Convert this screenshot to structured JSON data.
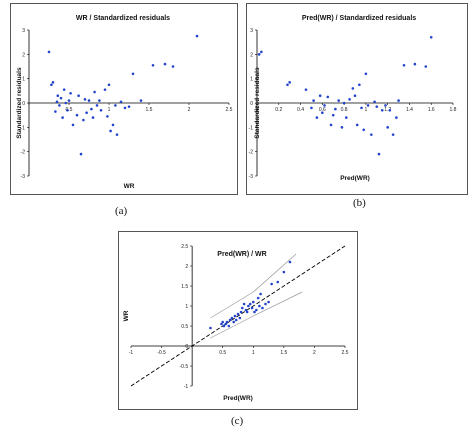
{
  "captions": [
    "(a)",
    "(b)",
    "(c)"
  ],
  "chart_data": [
    {
      "type": "scatter",
      "title": "WR / Standardized residuals",
      "xlabel": "WR",
      "ylabel": "Standardized residuals",
      "xlim": [
        0,
        2.5
      ],
      "ylim": [
        -3,
        3
      ],
      "xticks": [
        0,
        0.5,
        1,
        1.5,
        2,
        2.5
      ],
      "yticks": [
        -3,
        -2,
        -1,
        0,
        1,
        2,
        3
      ],
      "xtick_labels": [
        "0",
        "0.5",
        "1",
        "1.5",
        "2",
        "2.5"
      ],
      "ytick_labels": [
        "-3",
        "-2",
        "-1",
        "0",
        "1",
        "2",
        "3"
      ],
      "grid": false,
      "color": "#2244cc",
      "x": [
        0.25,
        0.28,
        0.3,
        0.33,
        0.35,
        0.36,
        0.38,
        0.4,
        0.42,
        0.44,
        0.46,
        0.48,
        0.5,
        0.52,
        0.55,
        0.6,
        0.62,
        0.65,
        0.68,
        0.7,
        0.72,
        0.75,
        0.78,
        0.8,
        0.82,
        0.85,
        0.88,
        0.9,
        0.95,
        0.98,
        1.0,
        1.02,
        1.05,
        1.08,
        1.1,
        1.15,
        1.2,
        1.25,
        1.3,
        1.4,
        1.55,
        1.7,
        1.8,
        2.1
      ],
      "y": [
        2.1,
        0.75,
        0.85,
        -0.35,
        0.05,
        0.3,
        -0.1,
        0.2,
        -0.6,
        0.55,
        0.0,
        -0.3,
        0.1,
        0.4,
        -0.9,
        -0.5,
        0.3,
        -2.1,
        -0.7,
        0.15,
        -0.4,
        0.1,
        -0.25,
        -0.6,
        0.45,
        -0.1,
        0.1,
        -0.3,
        0.55,
        -0.55,
        0.75,
        -1.15,
        -0.9,
        -0.1,
        -1.3,
        0.05,
        -0.2,
        -0.15,
        1.2,
        0.1,
        1.55,
        1.6,
        1.5,
        2.75
      ]
    },
    {
      "type": "scatter",
      "title": "Pred(WR) / Standardized residuals",
      "xlabel": "Pred(WR)",
      "ylabel": "Standardized residuals",
      "xlim": [
        0,
        1.8
      ],
      "ylim": [
        -3,
        3
      ],
      "xticks": [
        0,
        0.2,
        0.4,
        0.6,
        0.8,
        1,
        1.2,
        1.4,
        1.6,
        1.8
      ],
      "yticks": [
        -3,
        -2,
        -1,
        0,
        1,
        2,
        3
      ],
      "xtick_labels": [
        "0",
        "0.2",
        "0.4",
        "0.6",
        "0.8",
        "1",
        "1.2",
        "1.4",
        "1.6",
        "1.8"
      ],
      "ytick_labels": [
        "-3",
        "-2",
        "-1",
        "0",
        "1",
        "2",
        "3"
      ],
      "grid": false,
      "color": "#2244cc",
      "x": [
        0.02,
        0.04,
        0.28,
        0.3,
        0.45,
        0.5,
        0.52,
        0.55,
        0.58,
        0.6,
        0.62,
        0.65,
        0.68,
        0.7,
        0.72,
        0.75,
        0.78,
        0.8,
        0.82,
        0.85,
        0.88,
        0.9,
        0.92,
        0.94,
        0.96,
        0.98,
        1.0,
        1.02,
        1.05,
        1.08,
        1.1,
        1.12,
        1.15,
        1.18,
        1.2,
        1.22,
        1.25,
        1.28,
        1.3,
        1.35,
        1.45,
        1.55,
        1.6
      ],
      "y": [
        2.0,
        2.1,
        0.75,
        0.85,
        0.55,
        -0.2,
        0.1,
        -0.6,
        0.3,
        -0.4,
        -0.1,
        0.25,
        -0.9,
        -0.5,
        -0.25,
        0.1,
        -1.0,
        0.0,
        -0.6,
        0.15,
        0.6,
        0.3,
        -0.9,
        0.75,
        -0.2,
        -1.1,
        1.2,
        -0.1,
        -1.3,
        0.05,
        -0.15,
        -2.1,
        -0.3,
        -0.1,
        -1.0,
        -0.3,
        -1.3,
        -0.6,
        0.1,
        1.55,
        1.6,
        1.5,
        2.7
      ]
    },
    {
      "type": "scatter",
      "title": "Pred(WR) / WR",
      "xlabel": "Pred(WR)",
      "ylabel": "WR",
      "xlim": [
        -1,
        2.5
      ],
      "ylim": [
        -1,
        2.5
      ],
      "xticks": [
        -1,
        -0.5,
        0,
        0.5,
        1,
        1.5,
        2,
        2.5
      ],
      "yticks": [
        -1,
        -0.5,
        0,
        0.5,
        1,
        1.5,
        2,
        2.5
      ],
      "xtick_labels": [
        "-1",
        "-0.5",
        "0",
        "0.5",
        "1",
        "1.5",
        "2",
        "2.5"
      ],
      "ytick_labels": [
        "-1",
        "-0.5",
        "0",
        "0.5",
        "1",
        "1.5",
        "2",
        "2.5"
      ],
      "grid": false,
      "color": "#2244cc",
      "diagonal": "y = x (dashed)",
      "confidence_bands": true,
      "x": [
        0.3,
        0.48,
        0.5,
        0.52,
        0.55,
        0.57,
        0.6,
        0.62,
        0.65,
        0.68,
        0.7,
        0.72,
        0.75,
        0.78,
        0.8,
        0.82,
        0.85,
        0.88,
        0.9,
        0.92,
        0.95,
        0.98,
        1.0,
        1.02,
        1.05,
        1.08,
        1.1,
        1.12,
        1.15,
        1.2,
        1.25,
        1.3,
        1.4,
        1.5,
        1.6
      ],
      "y": [
        0.45,
        0.55,
        0.6,
        0.5,
        0.55,
        0.6,
        0.5,
        0.65,
        0.7,
        0.6,
        0.75,
        0.65,
        0.8,
        0.7,
        0.85,
        0.95,
        1.05,
        0.9,
        0.85,
        1.0,
        1.05,
        0.95,
        1.1,
        0.85,
        0.9,
        1.2,
        1.0,
        1.3,
        0.95,
        1.05,
        1.1,
        1.55,
        1.6,
        1.85,
        2.1
      ]
    }
  ]
}
